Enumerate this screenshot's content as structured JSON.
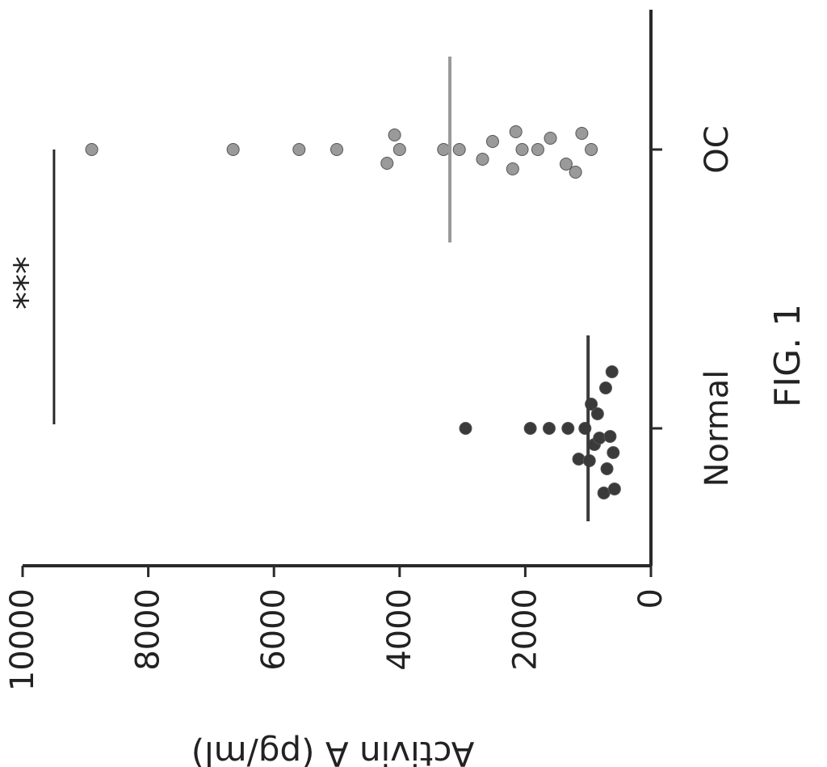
{
  "figure_label": "FIG. 1",
  "colors": {
    "normal_points": "#3a3a3a",
    "oc_points": "#9a9a9a",
    "axis": "#2a2a2a"
  },
  "chart_data": {
    "type": "scatter",
    "title": "",
    "xlabel": "",
    "ylabel": "Activin A (pg/ml)",
    "ylim": [
      0,
      10000
    ],
    "yticks": [
      0,
      2000,
      4000,
      6000,
      8000,
      10000
    ],
    "ytick_labels": [
      "0",
      "2000",
      "4000",
      "6000",
      "8000",
      "10000"
    ],
    "categories": [
      "Normal",
      "OC"
    ],
    "orientation": "rotated-90-ccw",
    "series": [
      {
        "category": "Normal",
        "color": "#3a3a3a",
        "mean": 1000,
        "points": [
          {
            "y": 2950,
            "offset": 0
          },
          {
            "y": 1920,
            "offset": 0
          },
          {
            "y": 1620,
            "offset": 0
          },
          {
            "y": 1320,
            "offset": 0
          },
          {
            "y": 1150,
            "offset": 38
          },
          {
            "y": 1050,
            "offset": 0
          },
          {
            "y": 980,
            "offset": 40
          },
          {
            "y": 950,
            "offset": -30
          },
          {
            "y": 900,
            "offset": 20
          },
          {
            "y": 850,
            "offset": -18
          },
          {
            "y": 820,
            "offset": 12
          },
          {
            "y": 750,
            "offset": 80
          },
          {
            "y": 720,
            "offset": -50
          },
          {
            "y": 700,
            "offset": 50
          },
          {
            "y": 650,
            "offset": 10
          },
          {
            "y": 620,
            "offset": -70
          },
          {
            "y": 600,
            "offset": 30
          },
          {
            "y": 580,
            "offset": 75
          }
        ]
      },
      {
        "category": "OC",
        "color": "#9a9a9a",
        "mean": 3200,
        "points": [
          {
            "y": 8900,
            "offset": 0
          },
          {
            "y": 6650,
            "offset": 0
          },
          {
            "y": 5600,
            "offset": 0
          },
          {
            "y": 5000,
            "offset": 0
          },
          {
            "y": 4200,
            "offset": 17
          },
          {
            "y": 4080,
            "offset": -18
          },
          {
            "y": 4000,
            "offset": 0
          },
          {
            "y": 3300,
            "offset": 0
          },
          {
            "y": 3050,
            "offset": 0
          },
          {
            "y": 2680,
            "offset": 12
          },
          {
            "y": 2520,
            "offset": -10
          },
          {
            "y": 2200,
            "offset": 24
          },
          {
            "y": 2150,
            "offset": -22
          },
          {
            "y": 2050,
            "offset": 0
          },
          {
            "y": 1800,
            "offset": 0
          },
          {
            "y": 1600,
            "offset": -14
          },
          {
            "y": 1350,
            "offset": 18
          },
          {
            "y": 1200,
            "offset": 28
          },
          {
            "y": 1100,
            "offset": -20
          },
          {
            "y": 950,
            "offset": 0
          }
        ]
      }
    ],
    "significance": {
      "label": "***",
      "y": 9500,
      "between": [
        "Normal",
        "OC"
      ]
    }
  }
}
